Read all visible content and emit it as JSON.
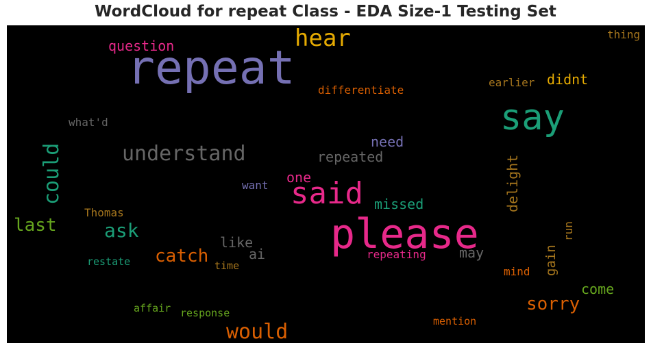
{
  "chart_data": {
    "type": "wordcloud",
    "title": "WordCloud for repeat Class - EDA Size-1 Testing Set",
    "background": "#000000",
    "words": [
      {
        "text": "repeat",
        "color": "#7570b3"
      },
      {
        "text": "please",
        "color": "#e7298a"
      },
      {
        "text": "say",
        "color": "#1b9e77"
      },
      {
        "text": "said",
        "color": "#e7298a"
      },
      {
        "text": "hear",
        "color": "#e6ab02"
      },
      {
        "text": "understand",
        "color": "#666666"
      },
      {
        "text": "could",
        "color": "#1b9e77"
      },
      {
        "text": "would",
        "color": "#d95f02"
      },
      {
        "text": "ask",
        "color": "#1b9e77"
      },
      {
        "text": "sorry",
        "color": "#d95f02"
      },
      {
        "text": "catch",
        "color": "#d95f02"
      },
      {
        "text": "last",
        "color": "#66a61e"
      },
      {
        "text": "delight",
        "color": "#a6761d"
      },
      {
        "text": "question",
        "color": "#e7298a"
      },
      {
        "text": "didnt",
        "color": "#e6ab02"
      },
      {
        "text": "repeated",
        "color": "#666666"
      },
      {
        "text": "need",
        "color": "#7570b3"
      },
      {
        "text": "missed",
        "color": "#1b9e77"
      },
      {
        "text": "one",
        "color": "#e7298a"
      },
      {
        "text": "like",
        "color": "#666666"
      },
      {
        "text": "may",
        "color": "#666666"
      },
      {
        "text": "gain",
        "color": "#a6761d"
      },
      {
        "text": "come",
        "color": "#66a61e"
      },
      {
        "text": "differentiate",
        "color": "#d95f02"
      },
      {
        "text": "earlier",
        "color": "#a6761d"
      },
      {
        "text": "ai",
        "color": "#666666"
      },
      {
        "text": "repeating",
        "color": "#e7298a"
      },
      {
        "text": "thing",
        "color": "#a6761d"
      },
      {
        "text": "what'd",
        "color": "#666666"
      },
      {
        "text": "want",
        "color": "#7570b3"
      },
      {
        "text": "Thomas",
        "color": "#a6761d"
      },
      {
        "text": "run",
        "color": "#a6761d"
      },
      {
        "text": "mind",
        "color": "#d95f02"
      },
      {
        "text": "restate",
        "color": "#1b9e77"
      },
      {
        "text": "time",
        "color": "#a6761d"
      },
      {
        "text": "affair",
        "color": "#66a61e"
      },
      {
        "text": "response",
        "color": "#66a61e"
      },
      {
        "text": "mention",
        "color": "#d95f02"
      }
    ]
  }
}
